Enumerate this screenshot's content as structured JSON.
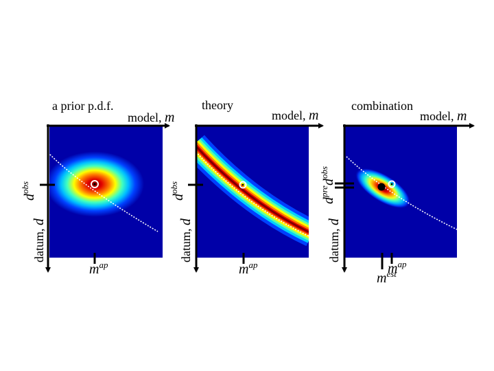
{
  "panels": [
    {
      "id": "prior",
      "title": "a prior p.d.f.",
      "xlabel_text": "model, ",
      "xlabel_var": "m",
      "ylabel_text": "datum, ",
      "ylabel_var": "d",
      "d_label_base": "d",
      "d_label_sup": "obs",
      "m_label_base": "m",
      "m_label_sup": "ap"
    },
    {
      "id": "theory",
      "title": "theory",
      "xlabel_text": "model, ",
      "xlabel_var": "m",
      "ylabel_text": "datum, ",
      "ylabel_var": "d",
      "d_label_base": "d",
      "d_label_sup": "obs",
      "m_label_base": "m",
      "m_label_sup": "ap"
    },
    {
      "id": "combination",
      "title": "combination",
      "xlabel_text": "model, ",
      "xlabel_var": "m",
      "ylabel_text": "datum, ",
      "ylabel_var": "d",
      "d_label_base": "d",
      "d_label_sup": "obs",
      "d_label2_base": "d",
      "d_label2_sup": "pre",
      "m_label_base": "m",
      "m_label_sup": "ap",
      "m_label2_base": "m",
      "m_label2_sup": "est"
    }
  ],
  "colors": {
    "heatmap_low": "#0000a0",
    "heatmap_mid": "#00ffff",
    "heatmap_high": "#ff0000",
    "curve": "#ffffff",
    "axes": "#000000"
  }
}
